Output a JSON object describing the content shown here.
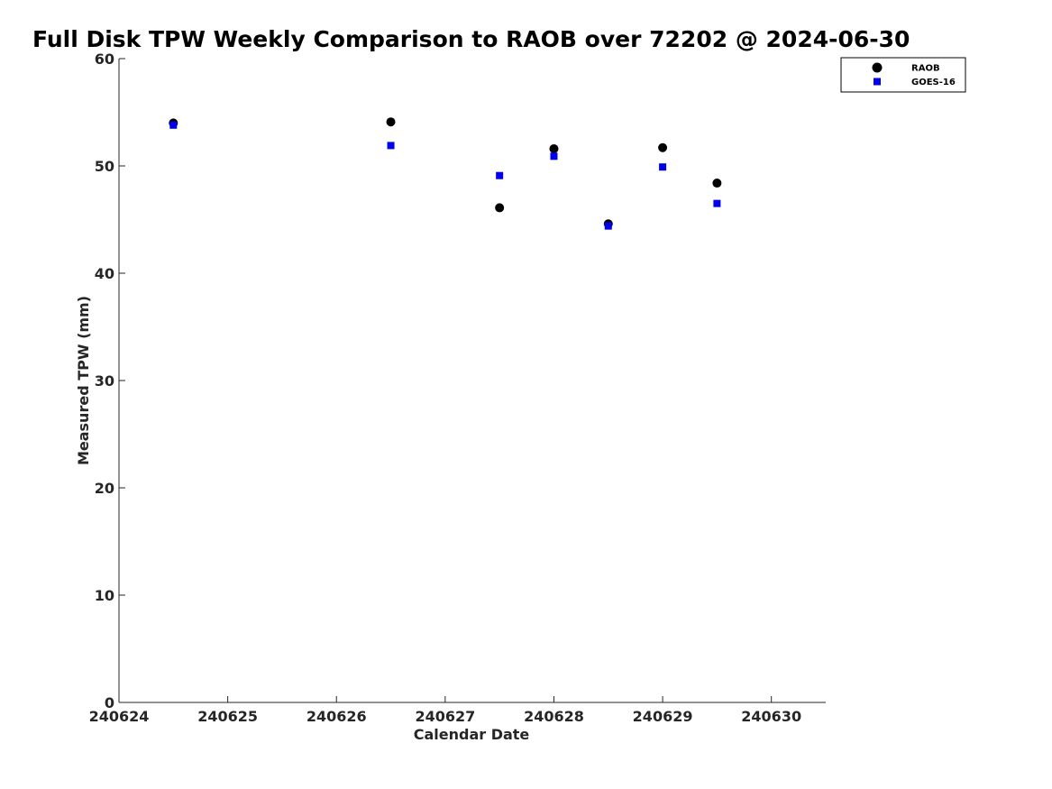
{
  "chart_data": {
    "type": "scatter",
    "title": "Full Disk TPW Weekly Comparison to RAOB over 72202 @ 2024-06-30",
    "xlabel": "Calendar Date",
    "ylabel": "Measured TPW (mm)",
    "xlim": [
      240624,
      240630.5
    ],
    "ylim": [
      0,
      60
    ],
    "x_ticks": [
      240624,
      240625,
      240626,
      240627,
      240628,
      240629,
      240630
    ],
    "x_tick_labels": [
      "240624",
      "240625",
      "240626",
      "240627",
      "240628",
      "240629",
      "240630"
    ],
    "y_ticks": [
      0,
      10,
      20,
      30,
      40,
      50,
      60
    ],
    "y_tick_labels": [
      "0",
      "10",
      "20",
      "30",
      "40",
      "50",
      "60"
    ],
    "grid": false,
    "legend_position": "top-right",
    "series": [
      {
        "name": "RAOB",
        "marker": "circle",
        "color": "#000000",
        "points": [
          {
            "x": 240624.5,
            "y": 54.0
          },
          {
            "x": 240626.5,
            "y": 54.1
          },
          {
            "x": 240627.5,
            "y": 46.1
          },
          {
            "x": 240628.0,
            "y": 51.6
          },
          {
            "x": 240628.5,
            "y": 44.6
          },
          {
            "x": 240629.0,
            "y": 51.7
          },
          {
            "x": 240629.5,
            "y": 48.4
          }
        ]
      },
      {
        "name": "GOES-16",
        "marker": "square",
        "color": "#0000ee",
        "points": [
          {
            "x": 240624.5,
            "y": 53.8
          },
          {
            "x": 240626.5,
            "y": 51.9
          },
          {
            "x": 240627.5,
            "y": 49.1
          },
          {
            "x": 240628.0,
            "y": 50.9
          },
          {
            "x": 240628.5,
            "y": 44.4
          },
          {
            "x": 240629.0,
            "y": 49.9
          },
          {
            "x": 240629.5,
            "y": 46.5
          }
        ]
      }
    ]
  }
}
